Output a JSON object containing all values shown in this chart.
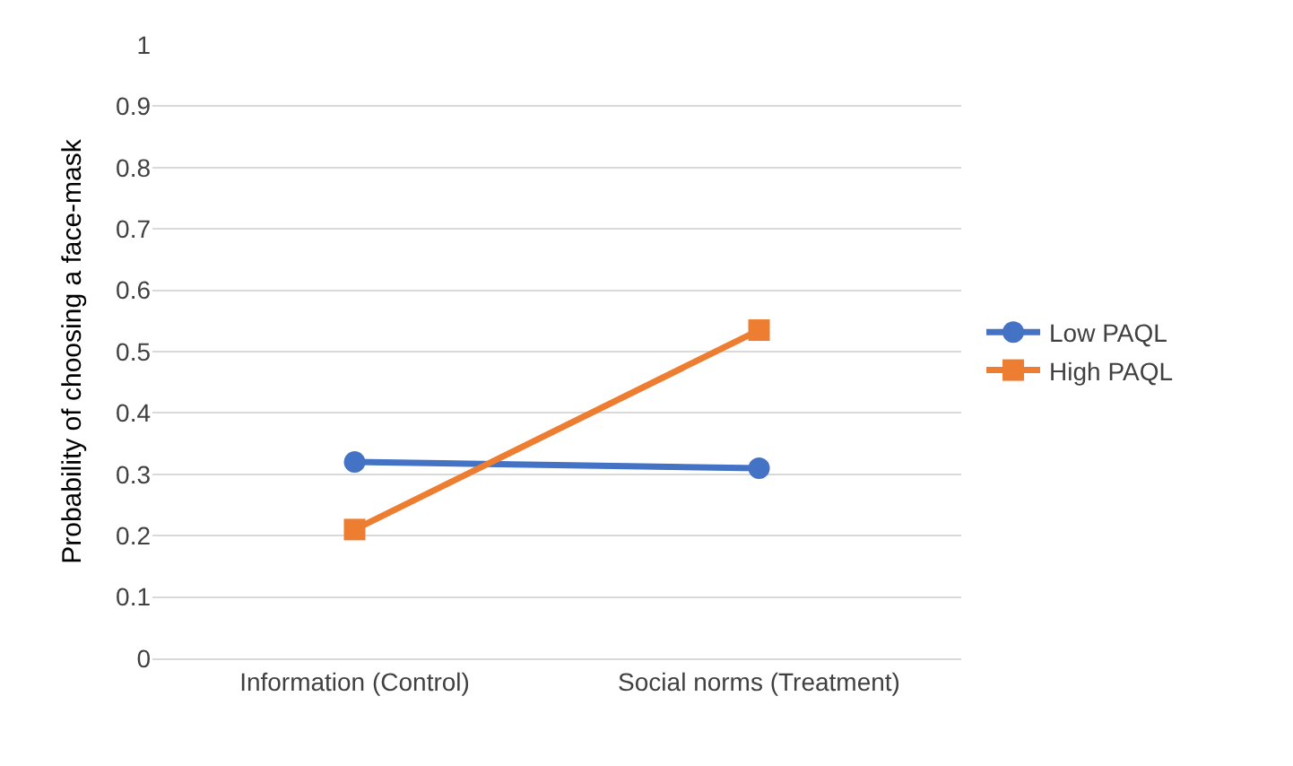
{
  "chart_data": {
    "type": "line",
    "ylabel": "Probability of choosing a face-mask",
    "categories": [
      "Information (Control)",
      "Social norms (Treatment)"
    ],
    "series": [
      {
        "name": "Low PAQL",
        "color": "#4472c4",
        "marker": "circle",
        "values": [
          0.32,
          0.31
        ]
      },
      {
        "name": "High PAQL",
        "color": "#ed7d31",
        "marker": "square",
        "values": [
          0.21,
          0.535
        ]
      }
    ],
    "ylim": [
      0,
      1
    ],
    "yticks": [
      0,
      0.1,
      0.2,
      0.3,
      0.4,
      0.5,
      0.6,
      0.7,
      0.8,
      0.9,
      1
    ],
    "grid": "y",
    "legend": "right"
  }
}
